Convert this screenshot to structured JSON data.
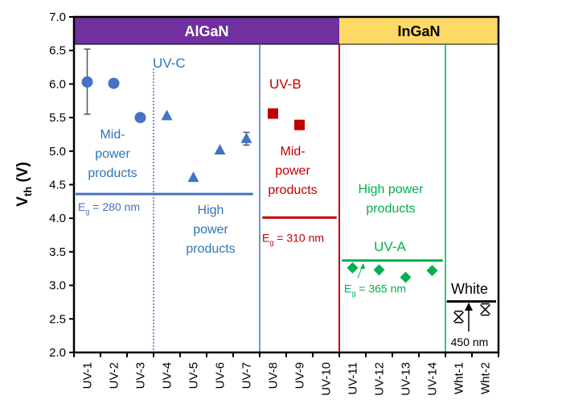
{
  "chart_data": {
    "type": "scatter",
    "ylabel": "Vth (V)",
    "ylabel_main": "V",
    "ylabel_sub": "th",
    "ylabel_unit": " (V)",
    "ylim": [
      2.0,
      7.0
    ],
    "yticks": [
      "2.0",
      "2.5",
      "3.0",
      "3.5",
      "4.0",
      "4.5",
      "5.0",
      "5.5",
      "6.0",
      "6.5",
      "7.0"
    ],
    "categories": [
      "UV-1",
      "UV-2",
      "UV-3",
      "UV-4",
      "UV-5",
      "UV-6",
      "UV-7",
      "UV-8",
      "UV-9",
      "UV-10",
      "UV-11",
      "UV-12",
      "UV-13",
      "UV-14",
      "Wht-1",
      "Wht-2"
    ],
    "series": [
      {
        "marker": "circle",
        "color": "#4472c4",
        "points": [
          {
            "x": "UV-1",
            "y": 6.03,
            "err": [
              5.55,
              6.52
            ]
          },
          {
            "x": "UV-2",
            "y": 6.01
          },
          {
            "x": "UV-3",
            "y": 5.5
          }
        ]
      },
      {
        "marker": "triangle",
        "color": "#4472c4",
        "points": [
          {
            "x": "UV-4",
            "y": 5.52
          },
          {
            "x": "UV-5",
            "y": 4.6
          },
          {
            "x": "UV-6",
            "y": 5.01
          },
          {
            "x": "UV-7",
            "y": 5.18,
            "err": [
              5.09,
              5.28
            ]
          }
        ]
      },
      {
        "marker": "square",
        "color": "#c00000",
        "points": [
          {
            "x": "UV-8",
            "y": 5.56
          },
          {
            "x": "UV-9",
            "y": 5.39
          }
        ]
      },
      {
        "marker": "diamond",
        "color": "#00b050",
        "points": [
          {
            "x": "UV-11",
            "y": 3.26
          },
          {
            "x": "UV-12",
            "y": 3.23
          },
          {
            "x": "UV-13",
            "y": 3.12
          },
          {
            "x": "UV-14",
            "y": 3.22
          }
        ]
      },
      {
        "marker": "asterisk",
        "color": "#000000",
        "points": [
          {
            "x": "Wht-1",
            "y": 2.53
          },
          {
            "x": "Wht-2",
            "y": 2.64
          }
        ]
      }
    ],
    "bands": [
      {
        "label": "AlGaN",
        "color": "#7030a0",
        "text_color": "#ffffff",
        "from": "UV-1",
        "to": "UV-10"
      },
      {
        "label": "InGaN",
        "color": "#ffd966",
        "text_color": "#000000",
        "from": "UV-11",
        "to": "Wht-2"
      }
    ],
    "reference_lines": [
      {
        "y": 4.36,
        "color": "#4472c4",
        "label_main": "E",
        "label_sub": "g",
        "label_rest": " = 280 nm"
      },
      {
        "y": 4.01,
        "color": "#c00000",
        "label_main": "E",
        "label_sub": "g",
        "label_rest": " = 310 nm"
      },
      {
        "y": 3.37,
        "color": "#00b050",
        "label_main": "E",
        "label_sub": "g",
        "label_rest": " = 365 nm"
      },
      {
        "y": 2.76,
        "color": "#000000",
        "label": "450 nm"
      }
    ],
    "annotations": {
      "uvc": "UV-C",
      "uvb": "UV-B",
      "uva": "UV-A",
      "white": "White",
      "mid_power_1": [
        "Mid-",
        "power",
        "products"
      ],
      "high_power_1": [
        "High",
        "power",
        "products"
      ],
      "mid_power_2": [
        "Mid-",
        "power",
        "products"
      ],
      "high_power_2": [
        "High power",
        "products"
      ]
    },
    "grid": false
  }
}
